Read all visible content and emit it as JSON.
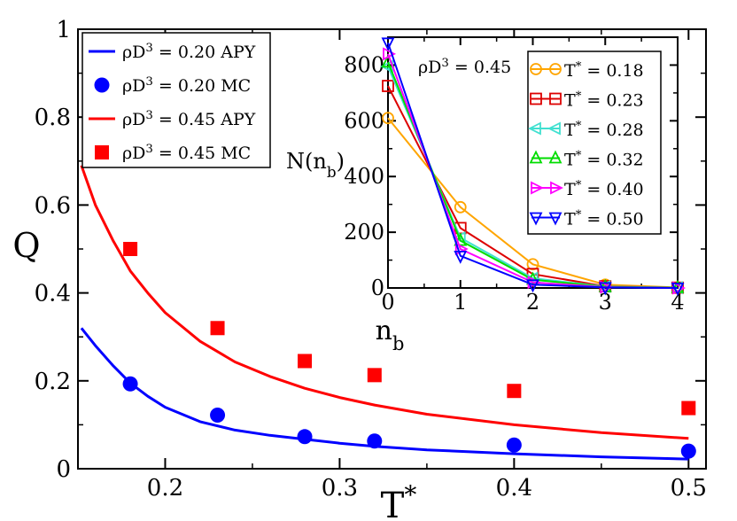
{
  "chart_data": [
    {
      "type": "line",
      "title": "",
      "xlabel": "T*",
      "xlabel_main": "T",
      "xlabel_sup": "*",
      "ylabel": "Q",
      "xlim": [
        0.15,
        0.51
      ],
      "ylim": [
        0,
        1
      ],
      "x_ticks": [
        0.2,
        0.3,
        0.4,
        0.5
      ],
      "x_tick_labels": [
        "0.2",
        "0.3",
        "0.4",
        "0.5"
      ],
      "y_ticks": [
        0,
        0.2,
        0.4,
        0.6,
        0.8,
        1.0
      ],
      "y_tick_labels": [
        "0",
        "0.2",
        "0.4",
        "0.6",
        "0.8",
        "1"
      ],
      "legend_position": "top-left",
      "series": [
        {
          "name": "ρD3 = 0.20 APY",
          "legend_main": "ρD",
          "legend_sup": "3",
          "legend_tail": " = 0.20 APY",
          "kind": "line",
          "color": "#0000ff",
          "x": [
            0.152,
            0.16,
            0.17,
            0.18,
            0.19,
            0.2,
            0.22,
            0.24,
            0.26,
            0.28,
            0.3,
            0.32,
            0.35,
            0.4,
            0.45,
            0.5
          ],
          "y": [
            0.32,
            0.28,
            0.235,
            0.195,
            0.165,
            0.14,
            0.107,
            0.088,
            0.076,
            0.067,
            0.058,
            0.051,
            0.043,
            0.034,
            0.027,
            0.022
          ]
        },
        {
          "name": "ρD3 = 0.20 MC",
          "legend_main": "ρD",
          "legend_sup": "3",
          "legend_tail": " = 0.20 MC",
          "kind": "circle",
          "color": "#0000ff",
          "x": [
            0.18,
            0.23,
            0.28,
            0.32,
            0.4,
            0.5
          ],
          "y": [
            0.193,
            0.122,
            0.073,
            0.063,
            0.054,
            0.04
          ]
        },
        {
          "name": "ρD3 = 0.45 APY",
          "legend_main": "ρD",
          "legend_sup": "3",
          "legend_tail": " = 0.45 APY",
          "kind": "line",
          "color": "#ff0000",
          "x": [
            0.152,
            0.16,
            0.17,
            0.18,
            0.19,
            0.2,
            0.22,
            0.24,
            0.26,
            0.28,
            0.3,
            0.32,
            0.35,
            0.4,
            0.45,
            0.5
          ],
          "y": [
            0.69,
            0.6,
            0.52,
            0.45,
            0.4,
            0.355,
            0.29,
            0.243,
            0.21,
            0.183,
            0.162,
            0.145,
            0.124,
            0.1,
            0.082,
            0.069
          ]
        },
        {
          "name": "ρD3 = 0.45 MC",
          "legend_main": "ρD",
          "legend_sup": "3",
          "legend_tail": " = 0.45 MC",
          "kind": "square",
          "color": "#ff0000",
          "x": [
            0.18,
            0.23,
            0.28,
            0.32,
            0.4,
            0.5
          ],
          "y": [
            0.5,
            0.32,
            0.245,
            0.213,
            0.177,
            0.138
          ]
        }
      ]
    },
    {
      "type": "line",
      "title": "",
      "annotation": "ρD3 = 0.45",
      "annotation_main": "ρD",
      "annotation_sup": "3",
      "annotation_tail": " = 0.45",
      "xlabel": "nb",
      "xlabel_main": "n",
      "xlabel_sub": "b",
      "ylabel": "N(nb)",
      "ylabel_main": "N(n",
      "ylabel_sub": "b",
      "ylabel_close": ")",
      "xlim": [
        0,
        4
      ],
      "ylim": [
        0,
        900
      ],
      "x_ticks": [
        0,
        1,
        2,
        3,
        4
      ],
      "x_tick_labels": [
        "0",
        "1",
        "2",
        "3",
        "4"
      ],
      "y_ticks": [
        0,
        200,
        400,
        600,
        800
      ],
      "y_tick_labels": [
        "0",
        "200",
        "400",
        "600",
        "800"
      ],
      "legend_position": "right",
      "series": [
        {
          "name": "T* = 0.18",
          "legend_main": "T",
          "legend_sup": "*",
          "legend_tail": " = 0.18",
          "marker": "circle",
          "color": "#ffa500",
          "x": [
            0,
            1,
            2,
            3,
            4
          ],
          "y": [
            610,
            290,
            85,
            12,
            2
          ]
        },
        {
          "name": "T* = 0.23",
          "legend_main": "T",
          "legend_sup": "*",
          "legend_tail": " = 0.23",
          "marker": "square",
          "color": "#dd0000",
          "x": [
            0,
            1,
            2,
            3,
            4
          ],
          "y": [
            725,
            215,
            50,
            6,
            1
          ]
        },
        {
          "name": "T* = 0.28",
          "legend_main": "T",
          "legend_sup": "*",
          "legend_tail": " = 0.28",
          "marker": "triangle-left",
          "color": "#40e0d0",
          "x": [
            0,
            1,
            2,
            3,
            4
          ],
          "y": [
            795,
            180,
            35,
            5,
            1
          ]
        },
        {
          "name": "T* = 0.32",
          "legend_main": "T",
          "legend_sup": "*",
          "legend_tail": " = 0.32",
          "marker": "triangle-up",
          "color": "#00dd00",
          "x": [
            0,
            1,
            2,
            3,
            4
          ],
          "y": [
            810,
            170,
            30,
            4,
            1
          ]
        },
        {
          "name": "T* = 0.40",
          "legend_main": "T",
          "legend_sup": "*",
          "legend_tail": " = 0.40",
          "marker": "triangle-right",
          "color": "#ff00ff",
          "x": [
            0,
            1,
            2,
            3,
            4
          ],
          "y": [
            840,
            140,
            20,
            3,
            0
          ]
        },
        {
          "name": "T* = 0.50",
          "legend_main": "T",
          "legend_sup": "*",
          "legend_tail": " = 0.50",
          "marker": "triangle-down",
          "color": "#0000ff",
          "x": [
            0,
            1,
            2,
            3,
            4
          ],
          "y": [
            880,
            115,
            12,
            2,
            0
          ]
        }
      ]
    }
  ]
}
